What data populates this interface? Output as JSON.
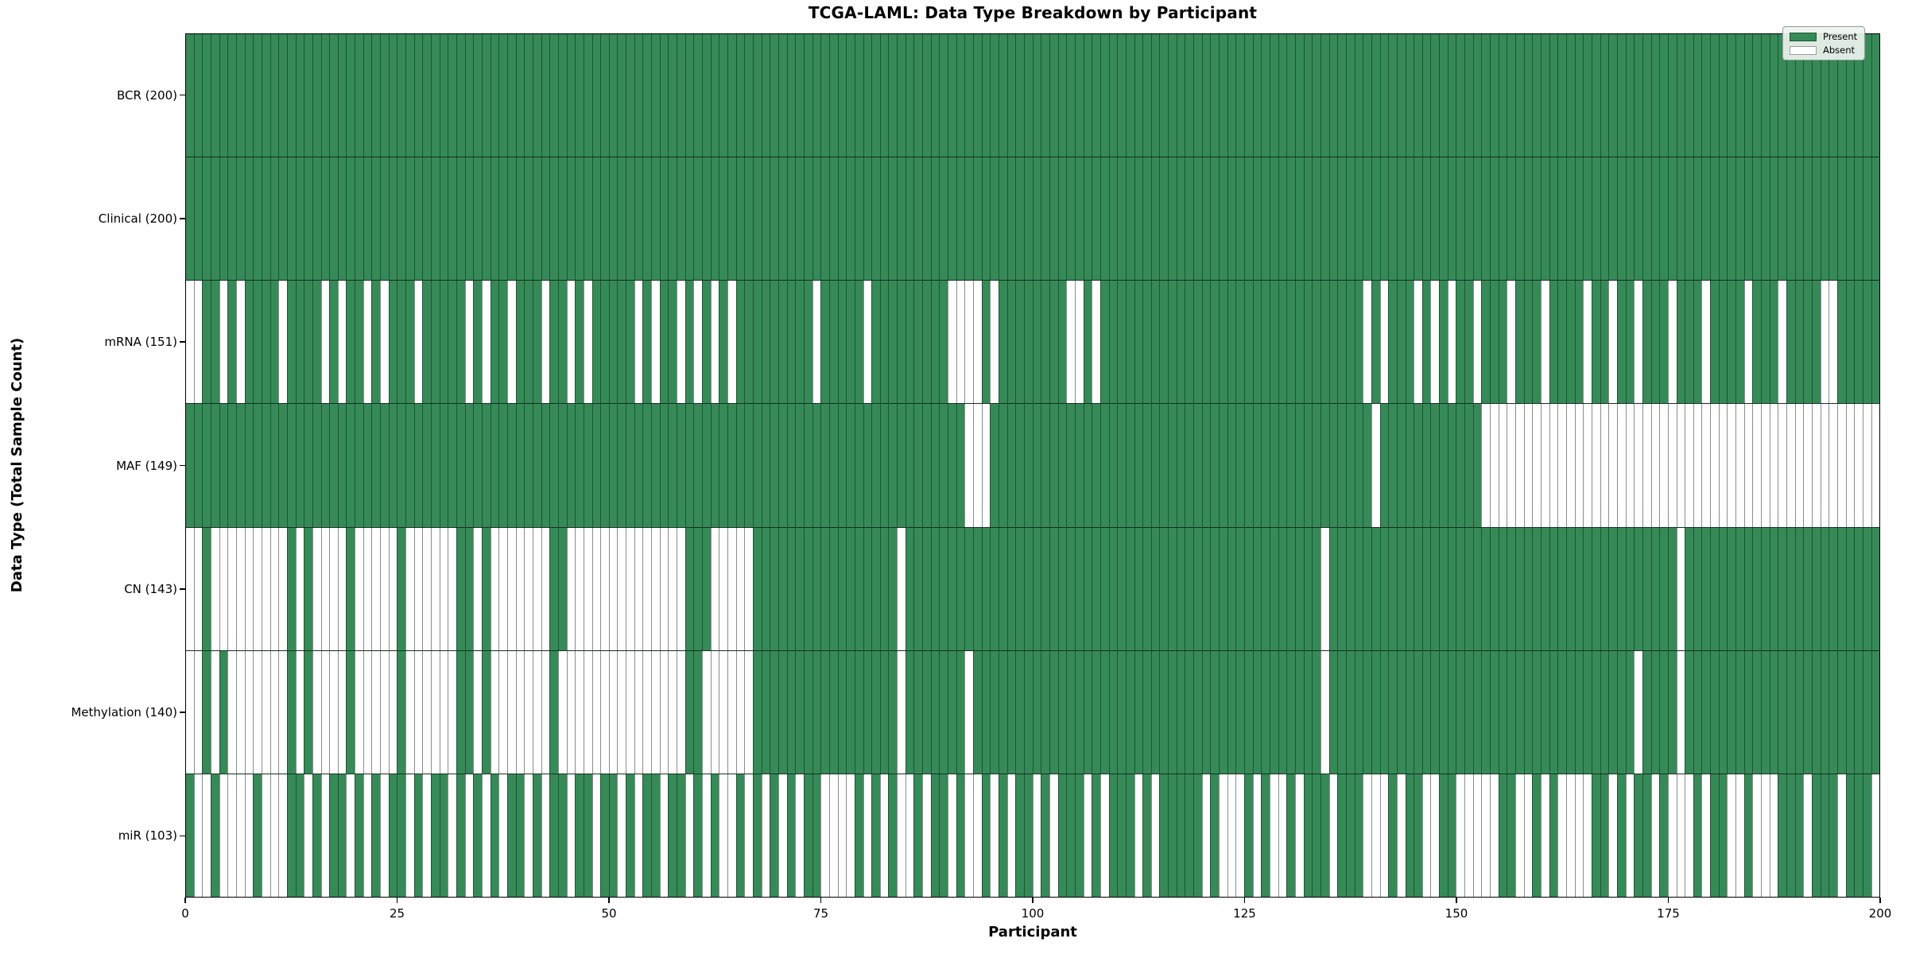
{
  "title": "TCGA-LAML: Data Type Breakdown by Participant",
  "x_axis": {
    "label": "Participant",
    "ticks": [
      0,
      25,
      50,
      75,
      100,
      125,
      150,
      175,
      200
    ]
  },
  "y_axis": {
    "label": "Data Type (Total Sample Count)"
  },
  "legend": {
    "present_label": "Present",
    "absent_label": "Absent"
  },
  "colors": {
    "present": "#368a58",
    "absent": "#ffffff",
    "present_edge": "#1e5634",
    "absent_edge": "#8c8c8c",
    "frame": "#000000"
  },
  "chart_data": {
    "type": "heatmap",
    "title": "TCGA-LAML: Data Type Breakdown by Participant",
    "xlabel": "Participant",
    "ylabel": "Data Type (Total Sample Count)",
    "x_range": [
      0,
      200
    ],
    "n_participants": 200,
    "legend_position": "upper right",
    "states": [
      "Present",
      "Absent"
    ],
    "rows": [
      {
        "name": "BCR",
        "total": 200,
        "label": "BCR (200)",
        "absent": []
      },
      {
        "name": "Clinical",
        "total": 200,
        "label": "Clinical (200)",
        "absent": []
      },
      {
        "name": "mRNA",
        "total": 151,
        "label": "mRNA (151)",
        "absent": [
          0,
          1,
          4,
          6,
          11,
          16,
          18,
          21,
          23,
          27,
          33,
          35,
          38,
          42,
          45,
          47,
          53,
          55,
          58,
          60,
          62,
          64,
          74,
          80,
          90,
          91,
          92,
          93,
          95,
          104,
          105,
          107,
          139,
          141,
          145,
          147,
          149,
          152,
          156,
          160,
          165,
          168,
          171,
          175,
          179,
          184,
          188,
          193,
          194
        ]
      },
      {
        "name": "MAF",
        "total": 149,
        "label": "MAF (149)",
        "absent": [
          92,
          93,
          94,
          140,
          153,
          154,
          155,
          156,
          157,
          158,
          159,
          160,
          161,
          162,
          163,
          164,
          165,
          166,
          167,
          168,
          169,
          170,
          171,
          172,
          173,
          174,
          175,
          176,
          177,
          178,
          179,
          180,
          181,
          182,
          183,
          184,
          185,
          186,
          187,
          188,
          189,
          190,
          191,
          192,
          193,
          194,
          195,
          196,
          197,
          198,
          199
        ]
      },
      {
        "name": "CN",
        "total": 143,
        "label": "CN (143)",
        "absent": [
          0,
          1,
          3,
          4,
          5,
          6,
          7,
          8,
          9,
          10,
          11,
          13,
          15,
          16,
          17,
          18,
          20,
          21,
          22,
          23,
          24,
          26,
          27,
          28,
          29,
          30,
          31,
          34,
          36,
          37,
          38,
          39,
          40,
          41,
          42,
          45,
          46,
          47,
          48,
          49,
          50,
          51,
          52,
          53,
          54,
          55,
          56,
          57,
          58,
          62,
          63,
          64,
          65,
          66,
          84,
          134,
          176
        ]
      },
      {
        "name": "Methylation",
        "total": 140,
        "label": "Methylation (140)",
        "absent": [
          0,
          1,
          3,
          5,
          6,
          7,
          8,
          9,
          10,
          11,
          13,
          15,
          16,
          17,
          18,
          20,
          21,
          22,
          23,
          24,
          26,
          27,
          28,
          29,
          30,
          31,
          34,
          36,
          37,
          38,
          39,
          40,
          41,
          42,
          44,
          45,
          46,
          47,
          48,
          49,
          50,
          51,
          52,
          53,
          54,
          55,
          56,
          57,
          58,
          61,
          62,
          63,
          64,
          65,
          66,
          84,
          92,
          134,
          171,
          176
        ]
      },
      {
        "name": "miR",
        "total": 103,
        "label": "miR (103)",
        "absent": [
          1,
          2,
          4,
          5,
          6,
          7,
          9,
          10,
          11,
          14,
          16,
          19,
          21,
          23,
          26,
          28,
          31,
          33,
          35,
          37,
          40,
          42,
          45,
          48,
          51,
          53,
          56,
          59,
          61,
          63,
          64,
          66,
          68,
          70,
          72,
          75,
          76,
          77,
          78,
          80,
          82,
          84,
          85,
          87,
          90,
          92,
          93,
          95,
          97,
          100,
          102,
          106,
          108,
          112,
          114,
          120,
          122,
          123,
          124,
          126,
          128,
          129,
          131,
          135,
          139,
          140,
          141,
          143,
          146,
          147,
          150,
          151,
          152,
          153,
          154,
          157,
          158,
          160,
          162,
          163,
          164,
          165,
          168,
          170,
          173,
          175,
          176,
          177,
          179,
          182,
          183,
          185,
          186,
          187,
          191,
          195,
          199
        ]
      }
    ]
  }
}
